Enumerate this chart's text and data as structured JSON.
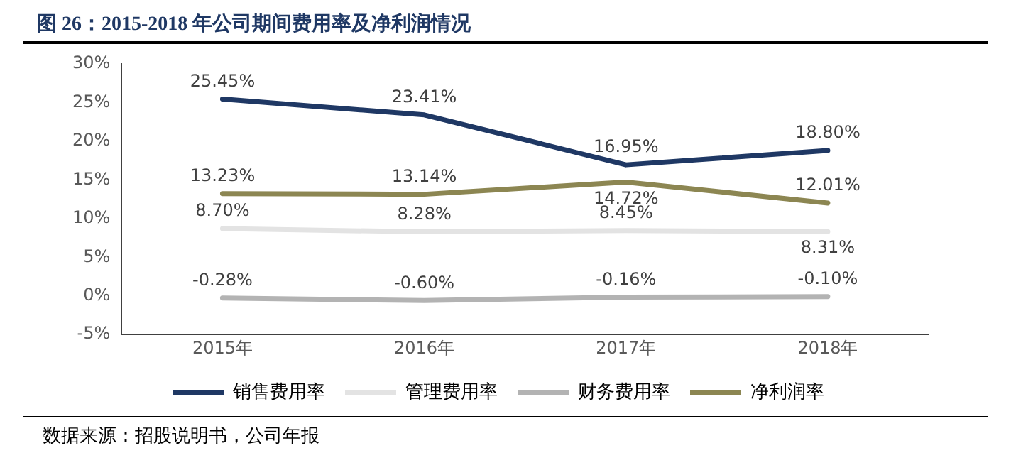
{
  "chart_data": {
    "type": "line",
    "title": "图 26：2015-2018 年公司期间费用率及净利润情况",
    "categories": [
      "2015年",
      "2016年",
      "2017年",
      "2018年"
    ],
    "series": [
      {
        "name": "销售费用率",
        "color": "#1f3864",
        "values": [
          25.45,
          23.41,
          16.95,
          18.8
        ],
        "value_labels": [
          "25.45%",
          "23.41%",
          "16.95%",
          "18.80%"
        ]
      },
      {
        "name": "管理费用率",
        "color": "#e3e3e3",
        "values": [
          8.7,
          8.28,
          8.45,
          8.31
        ],
        "value_labels": [
          "8.70%",
          "8.28%",
          "8.45%",
          "8.31%"
        ]
      },
      {
        "name": "财务费用率",
        "color": "#b3b3b3",
        "values": [
          -0.28,
          -0.6,
          -0.16,
          -0.1
        ],
        "value_labels": [
          "-0.28%",
          "-0.60%",
          "-0.16%",
          "-0.10%"
        ]
      },
      {
        "name": "净利润率",
        "color": "#8c8652",
        "values": [
          13.23,
          13.14,
          14.72,
          12.01
        ],
        "value_labels": [
          "13.23%",
          "13.14%",
          "14.72%",
          "12.01%"
        ]
      }
    ],
    "ylim": [
      -5,
      30
    ],
    "yticks": [
      {
        "value": -5,
        "label": "-5%"
      },
      {
        "value": 0,
        "label": "0%"
      },
      {
        "value": 5,
        "label": "5%"
      },
      {
        "value": 10,
        "label": "10%"
      },
      {
        "value": 15,
        "label": "15%"
      },
      {
        "value": 20,
        "label": "20%"
      },
      {
        "value": 25,
        "label": "25%"
      },
      {
        "value": 30,
        "label": "30%"
      }
    ],
    "grid": false,
    "legend": "bottom",
    "marker": "none",
    "line_style": "solid",
    "annotations": [
      "数据来源：招股说明书，公司年报"
    ]
  }
}
